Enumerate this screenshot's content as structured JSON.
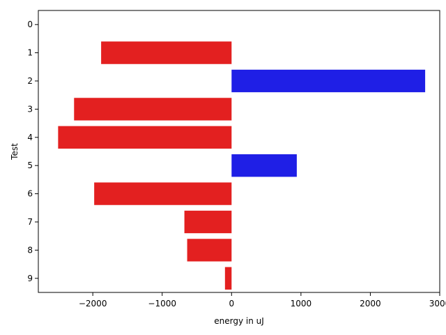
{
  "chart_data": {
    "type": "bar",
    "orientation": "horizontal",
    "categories": [
      "0",
      "1",
      "2",
      "3",
      "4",
      "5",
      "6",
      "7",
      "8",
      "9"
    ],
    "values": [
      0,
      -1880,
      2790,
      -2270,
      -2500,
      940,
      -1980,
      -680,
      -640,
      -95
    ],
    "xlabel": "energy in uJ",
    "ylabel": "Test",
    "xlim": [
      -2785,
      3000
    ],
    "xticks": [
      -2000,
      -1000,
      0,
      1000,
      2000,
      3000
    ],
    "xtick_labels": [
      "−2000",
      "−1000",
      "0",
      "1000",
      "2000",
      "3000"
    ],
    "grid": false,
    "legend": "none",
    "colors": {
      "negative": "#e32020",
      "positive": "#1f1fe6"
    }
  }
}
